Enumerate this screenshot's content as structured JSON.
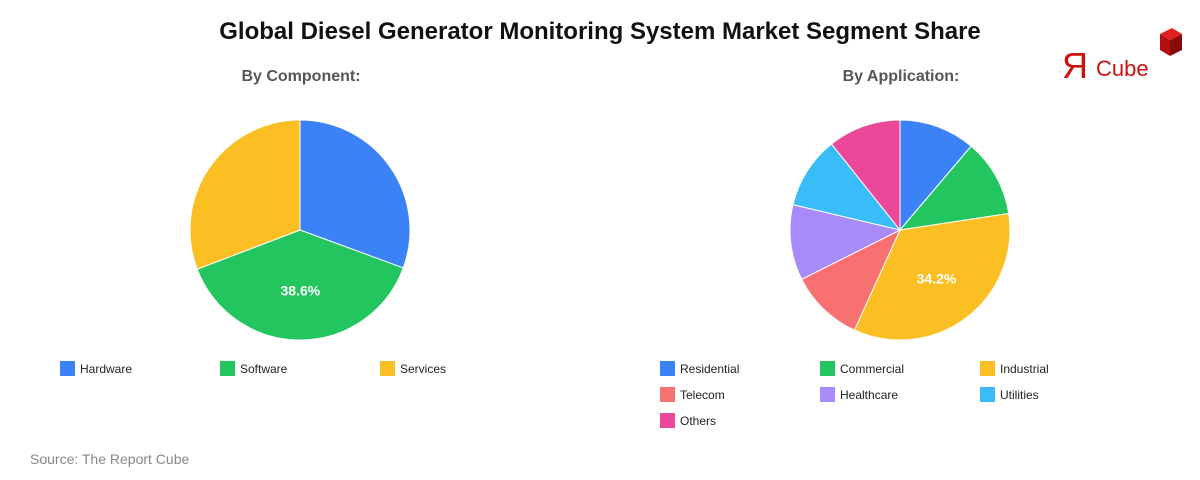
{
  "title": "Global Diesel Generator Monitoring System Market Segment Share",
  "logo": {
    "text_r": "Я",
    "text": "Cube",
    "color": "#cc1111"
  },
  "source": "Source: The Report Cube",
  "chart_data": [
    {
      "type": "pie",
      "title": "By Component:",
      "categories": [
        "Hardware",
        "Software",
        "Services"
      ],
      "values": [
        30.6,
        38.6,
        30.8
      ],
      "colors": [
        "#3b82f6",
        "#22c55e",
        "#fbbf24"
      ],
      "labels_shown": {
        "Software": "38.6%"
      },
      "legend_position": "bottom"
    },
    {
      "type": "pie",
      "title": "By Application:",
      "categories": [
        "Residential",
        "Commercial",
        "Industrial",
        "Telecom",
        "Healthcare",
        "Utilities",
        "Others"
      ],
      "values": [
        11.2,
        11.4,
        34.2,
        10.8,
        11.1,
        10.6,
        10.7
      ],
      "colors": [
        "#3b82f6",
        "#22c55e",
        "#fbbf24",
        "#f87171",
        "#a78bfa",
        "#38bdf8",
        "#ec4899"
      ],
      "labels_shown": {
        "Industrial": "34.2%"
      },
      "legend_position": "bottom"
    }
  ]
}
